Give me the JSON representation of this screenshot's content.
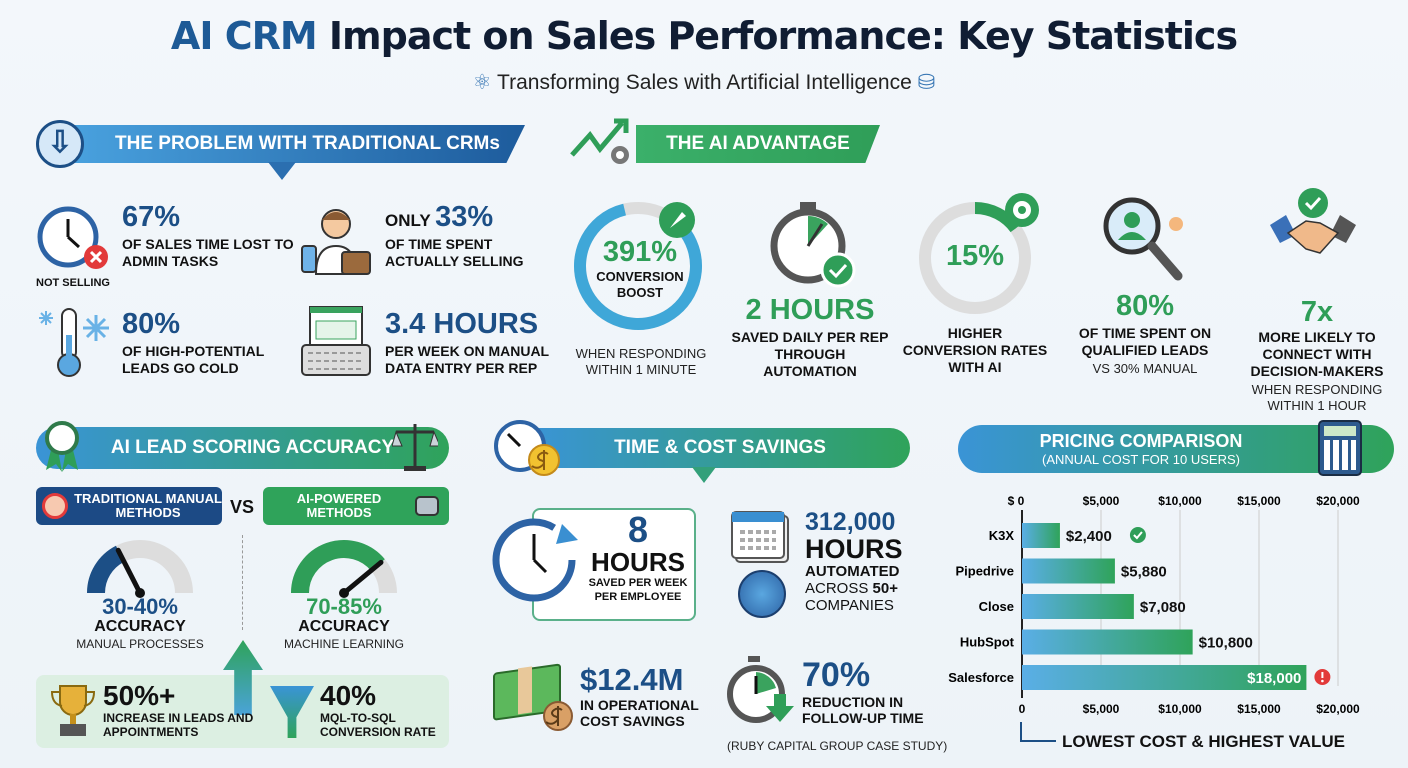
{
  "header": {
    "title_highlight": "AI CRM",
    "title_rest": " Impact on Sales Performance: Key Statistics",
    "subtitle": "Transforming Sales with Artificial Intelligence"
  },
  "problem": {
    "title": "THE PROBLEM WITH TRADITIONAL CRMs",
    "stats": [
      {
        "value": "67%",
        "text": "OF SALES TIME LOST TO ADMIN TASKS",
        "icon_caption": "NOT SELLING"
      },
      {
        "prefix": "ONLY ",
        "value": "33%",
        "text": "OF TIME SPENT ACTUALLY SELLING"
      },
      {
        "value": "80%",
        "text": "OF HIGH-POTENTIAL LEADS GO COLD"
      },
      {
        "value": "3.4 HOURS",
        "text": "PER WEEK ON MANUAL DATA ENTRY PER REP"
      }
    ]
  },
  "advantage": {
    "title": "THE AI ADVANTAGE",
    "stats": [
      {
        "value": "391%",
        "label": "CONVERSION BOOST",
        "note": "WHEN RESPONDING WITHIN 1 MINUTE"
      },
      {
        "value": "2 HOURS",
        "label": "SAVED DAILY PER REP THROUGH AUTOMATION"
      },
      {
        "value": "15%",
        "label": "HIGHER CONVERSION RATES WITH AI"
      },
      {
        "value": "80%",
        "label": "OF TIME SPENT ON QUALIFIED LEADS",
        "note": "VS 30% MANUAL"
      },
      {
        "value": "7x",
        "label": "MORE LIKELY TO CONNECT WITH DECISION-MAKERS",
        "note": "WHEN RESPONDING WITHIN 1 HOUR"
      }
    ]
  },
  "scoring": {
    "title": "AI LEAD SCORING ACCURACY",
    "traditional_label": "TRADITIONAL MANUAL METHODS",
    "vs": "VS",
    "ai_label": "AI-POWERED METHODS",
    "traditional": {
      "value": "30-40%",
      "label": "ACCURACY",
      "note": "MANUAL PROCESSES",
      "gauge_percent": 35
    },
    "ai": {
      "value": "70-85%",
      "label": "ACCURACY",
      "note": "MACHINE LEARNING",
      "gauge_percent": 78
    },
    "results": [
      {
        "value": "50%+",
        "text": "INCREASE IN LEADS AND APPOINTMENTS"
      },
      {
        "value": "40%",
        "text": "MQL-TO-SQL CONVERSION RATE"
      }
    ]
  },
  "savings": {
    "title": "TIME & COST SAVINGS",
    "hours": {
      "value": "8",
      "unit": "HOURS",
      "text": "SAVED PER WEEK PER EMPLOYEE"
    },
    "automated": {
      "value": "312,000",
      "unit": "HOURS",
      "line1": "AUTOMATED",
      "line2a": "ACROSS ",
      "line2b": "50+",
      "line3": "COMPANIES"
    },
    "cost": {
      "value": "$12.4M",
      "text": "IN OPERATIONAL COST SAVINGS"
    },
    "followup": {
      "value": "70%",
      "text": "REDUCTION IN FOLLOW-UP TIME",
      "note": "(RUBY CAPITAL GROUP CASE STUDY)"
    }
  },
  "pricing": {
    "title": "PRICING COMPARISON",
    "subtitle": "(ANNUAL COST FOR 10 USERS)",
    "footer": "LOWEST COST & HIGHEST VALUE"
  },
  "chart_data": {
    "type": "bar",
    "orientation": "horizontal",
    "categories": [
      "K3X",
      "Pipedrive",
      "Close",
      "HubSpot",
      "Salesforce"
    ],
    "values": [
      2400,
      5880,
      7080,
      10800,
      18000
    ],
    "value_labels": [
      "$2,400",
      "$5,880",
      "$7,080",
      "$10,800",
      "$18,000"
    ],
    "xlim": [
      0,
      20000
    ],
    "top_ticks": [
      "$ 0",
      "$5,000",
      "$10,000",
      "$15,000",
      "$20,000"
    ],
    "bottom_ticks": [
      "0",
      "$5,000",
      "$10,000",
      "$15,000",
      "$20,000"
    ],
    "grid": true,
    "bar_gradient": [
      "#5aaee6",
      "#2fa35a"
    ],
    "markers": {
      "K3X": "check",
      "Salesforce": "alert"
    }
  },
  "colors": {
    "navy": "#1c4f86",
    "green": "#2f9e58",
    "blue": "#3a8fd1",
    "red": "#e23a3a"
  }
}
